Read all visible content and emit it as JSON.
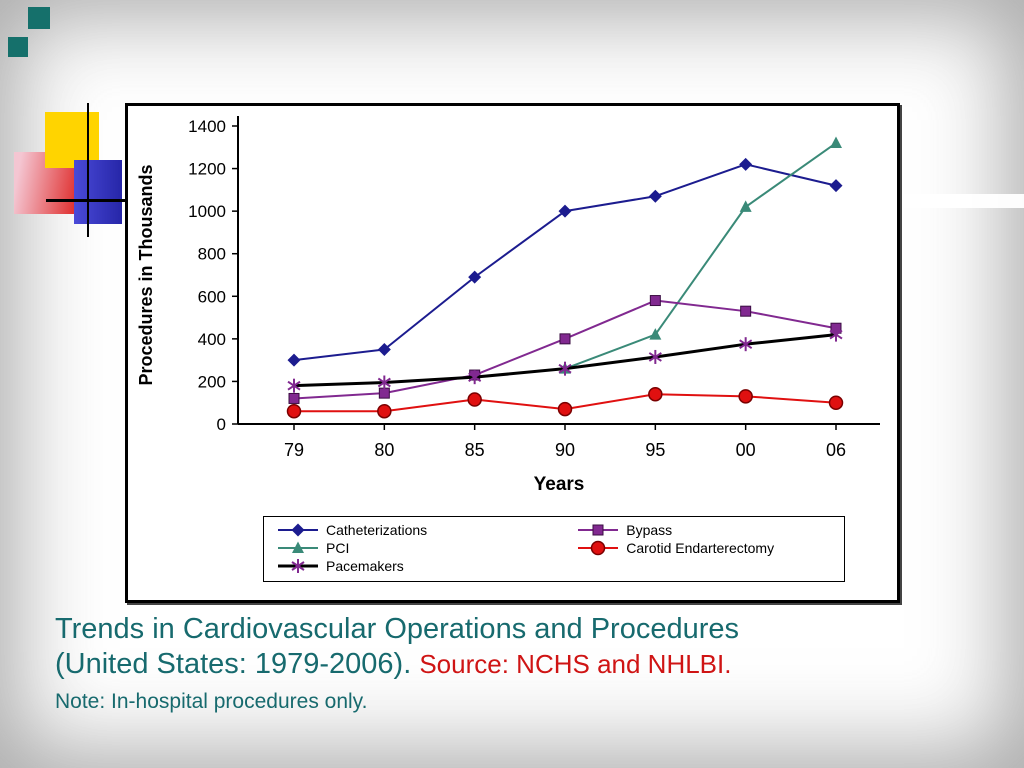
{
  "slide": {
    "caption_line1": "Trends in Cardiovascular Operations and Procedures",
    "caption_line2": "(United States: 1979-2006).",
    "caption_source": "Source: NCHS and NHLBI.",
    "caption_note": "Note: In-hospital procedures only."
  },
  "colors": {
    "caption_teal": "#176a6e",
    "caption_red": "#cf1414",
    "decor_teal": "#15706b",
    "decor_yellow": "#ffd400",
    "decor_blue": "#3333bf",
    "decor_red": "#e03434"
  },
  "chart_data": {
    "type": "line",
    "title": "",
    "xlabel": "Years",
    "ylabel": "Procedures in Thousands",
    "categories": [
      "79",
      "80",
      "85",
      "90",
      "95",
      "00",
      "06"
    ],
    "ylim": [
      0,
      1400
    ],
    "ytick_step": 200,
    "grid": false,
    "legend_position": "bottom",
    "series": [
      {
        "name": "Catheterizations",
        "marker": "diamond",
        "color": "#1c1c8f",
        "line_width": 2,
        "values": [
          300,
          350,
          690,
          1000,
          1070,
          1220,
          1120
        ]
      },
      {
        "name": "PCI",
        "marker": "triangle",
        "color": "#3a8a78",
        "line_width": 2,
        "values": [
          null,
          null,
          null,
          260,
          420,
          1020,
          1320
        ]
      },
      {
        "name": "Bypass",
        "marker": "square",
        "color": "#812990",
        "line_width": 2,
        "values": [
          120,
          145,
          230,
          400,
          580,
          530,
          450
        ]
      },
      {
        "name": "Carotid Endarterectomy",
        "marker": "circle",
        "color": "#e01010",
        "line_width": 2,
        "values": [
          60,
          60,
          115,
          70,
          140,
          130,
          100
        ]
      },
      {
        "name": "Pacemakers",
        "marker": "asterisk",
        "color": "#000000",
        "marker_color": "#812990",
        "line_width": 3,
        "values": [
          180,
          195,
          220,
          260,
          315,
          375,
          420
        ]
      }
    ],
    "legend_columns": [
      [
        "Catheterizations",
        "PCI",
        "Pacemakers"
      ],
      [
        "Bypass",
        "Carotid Endarterectomy"
      ]
    ]
  }
}
